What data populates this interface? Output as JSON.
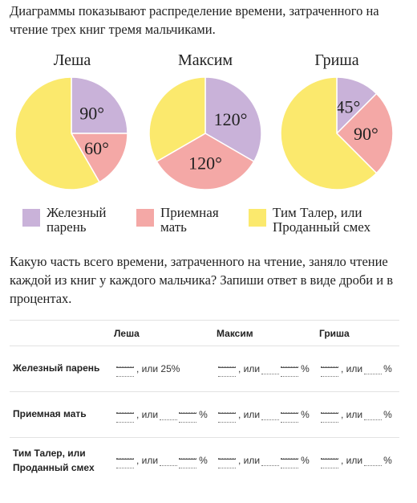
{
  "intro": "Диаграммы показывают распределение времени, затраченного на чтение трех книг тремя мальчиками.",
  "colors": {
    "purple": "#c9b2d9",
    "pink": "#f4a8a6",
    "yellow": "#fbe96d"
  },
  "chart_data": [
    {
      "type": "pie",
      "title": "Леша",
      "slices": [
        {
          "name": "Железный парень",
          "value": 90,
          "label": "90°",
          "color": "#c9b2d9"
        },
        {
          "name": "Приемная мать",
          "value": 60,
          "label": "60°",
          "color": "#f4a8a6"
        },
        {
          "name": "Тим Талер, или Проданный смех",
          "value": 210,
          "label": "",
          "color": "#fbe96d"
        }
      ]
    },
    {
      "type": "pie",
      "title": "Максим",
      "slices": [
        {
          "name": "Железный парень",
          "value": 120,
          "label": "120°",
          "color": "#c9b2d9"
        },
        {
          "name": "Приемная мать",
          "value": 120,
          "label": "120°",
          "color": "#f4a8a6"
        },
        {
          "name": "Тим Талер, или Проданный смех",
          "value": 120,
          "label": "",
          "color": "#fbe96d"
        }
      ]
    },
    {
      "type": "pie",
      "title": "Гриша",
      "slices": [
        {
          "name": "Железный парень",
          "value": 45,
          "label": "45°",
          "color": "#c9b2d9"
        },
        {
          "name": "Приемная мать",
          "value": 90,
          "label": "90°",
          "color": "#f4a8a6"
        },
        {
          "name": "Тим Талер, или Проданный смех",
          "value": 225,
          "label": "",
          "color": "#fbe96d"
        }
      ]
    }
  ],
  "legend": [
    {
      "line1": "Железный",
      "line2": "парень",
      "color": "#c9b2d9"
    },
    {
      "line1": "Приемная",
      "line2": "мать",
      "color": "#f4a8a6"
    },
    {
      "line1": "Тим Талер, или",
      "line2": "Проданный смех",
      "color": "#fbe96d"
    }
  ],
  "question": "Какую часть всего времени, затраченного на чтение, заняло чтение каждой из книг у каждого мальчика? Запиши ответ в виде дроби и в процентах.",
  "table": {
    "headers": [
      "Леша",
      "Максим",
      "Гриша"
    ],
    "rows": [
      {
        "label": "Железный парень",
        "first_cell": ", или 25%"
      },
      {
        "label": "Приемная мать"
      },
      {
        "label": "Тим Талер, или Проданный смех"
      }
    ],
    "or_text": ", или",
    "percent": "%"
  }
}
